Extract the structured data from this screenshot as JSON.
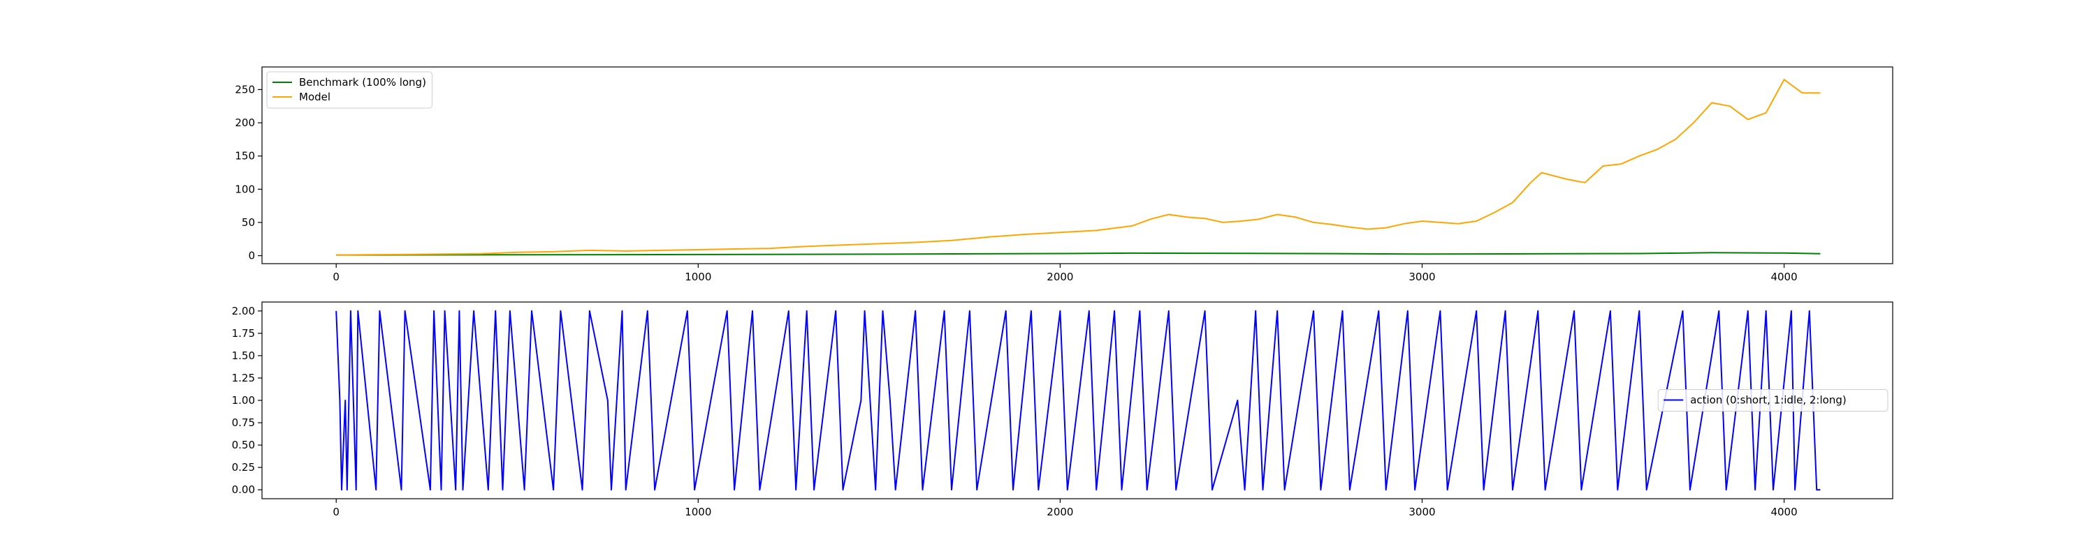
{
  "chart_data": [
    {
      "type": "line",
      "title": "",
      "xlabel": "",
      "ylabel": "",
      "xlim": [
        -205,
        4300
      ],
      "ylim": [
        -12,
        284
      ],
      "xticks": [
        0,
        1000,
        2000,
        3000,
        4000
      ],
      "yticks": [
        0,
        50,
        100,
        150,
        200,
        250
      ],
      "xtick_labels": [
        "0",
        "1000",
        "2000",
        "3000",
        "4000"
      ],
      "ytick_labels": [
        "0",
        "50",
        "100",
        "150",
        "200",
        "250"
      ],
      "grid": false,
      "legend_position": "upper-left",
      "series": [
        {
          "name": "Benchmark (100% long)",
          "color": "#008000",
          "x": [
            0,
            500,
            1000,
            1500,
            2000,
            2200,
            2500,
            2800,
            3000,
            3300,
            3600,
            3800,
            4000,
            4100
          ],
          "y": [
            1,
            1.3,
            1.8,
            2.3,
            3.2,
            3.8,
            3.5,
            3.0,
            2.5,
            2.8,
            3.2,
            4.5,
            4.0,
            3.0
          ]
        },
        {
          "name": "Model",
          "color": "#ffa500",
          "x": [
            0,
            100,
            200,
            300,
            400,
            500,
            600,
            700,
            800,
            900,
            1000,
            1100,
            1200,
            1300,
            1400,
            1500,
            1600,
            1700,
            1800,
            1900,
            2000,
            2100,
            2200,
            2250,
            2300,
            2350,
            2400,
            2450,
            2500,
            2550,
            2600,
            2650,
            2700,
            2750,
            2800,
            2850,
            2900,
            2950,
            3000,
            3050,
            3100,
            3150,
            3200,
            3250,
            3300,
            3330,
            3400,
            3450,
            3500,
            3550,
            3600,
            3650,
            3700,
            3750,
            3800,
            3850,
            3900,
            3950,
            4000,
            4050,
            4100
          ],
          "y": [
            1,
            1.5,
            2,
            2.5,
            3,
            5,
            6,
            8,
            7,
            8,
            9,
            10,
            11,
            14,
            16,
            18,
            20,
            23,
            28,
            32,
            35,
            38,
            45,
            55,
            62,
            58,
            56,
            50,
            52,
            55,
            62,
            58,
            50,
            47,
            43,
            40,
            42,
            48,
            52,
            50,
            48,
            52,
            65,
            80,
            110,
            125,
            115,
            110,
            135,
            138,
            150,
            160,
            175,
            200,
            230,
            225,
            205,
            215,
            265,
            245,
            245
          ]
        }
      ]
    },
    {
      "type": "line",
      "title": "",
      "xlabel": "",
      "ylabel": "",
      "xlim": [
        -205,
        4300
      ],
      "ylim": [
        -0.1,
        2.1
      ],
      "xticks": [
        0,
        1000,
        2000,
        3000,
        4000
      ],
      "yticks": [
        0,
        0.25,
        0.5,
        0.75,
        1.0,
        1.25,
        1.5,
        1.75,
        2.0
      ],
      "xtick_labels": [
        "0",
        "1000",
        "2000",
        "3000",
        "4000"
      ],
      "ytick_labels": [
        "0.00",
        "0.25",
        "0.50",
        "0.75",
        "1.00",
        "1.25",
        "1.50",
        "1.75",
        "2.00"
      ],
      "grid": false,
      "legend_position": "center-right",
      "series": [
        {
          "name": "action (0:short, 1:idle, 2:long)",
          "color": "#0000ff",
          "x": [
            0,
            10,
            15,
            25,
            30,
            40,
            55,
            60,
            110,
            120,
            180,
            190,
            260,
            270,
            290,
            300,
            330,
            340,
            350,
            380,
            420,
            440,
            460,
            480,
            520,
            540,
            600,
            620,
            680,
            700,
            750,
            760,
            790,
            800,
            860,
            880,
            970,
            990,
            1080,
            1100,
            1150,
            1170,
            1250,
            1270,
            1300,
            1320,
            1380,
            1400,
            1450,
            1460,
            1490,
            1510,
            1530,
            1545,
            1600,
            1620,
            1680,
            1700,
            1750,
            1770,
            1850,
            1870,
            1920,
            1940,
            2000,
            2020,
            2080,
            2100,
            2150,
            2170,
            2220,
            2240,
            2300,
            2320,
            2400,
            2420,
            2490,
            2510,
            2540,
            2560,
            2600,
            2620,
            2700,
            2720,
            2780,
            2800,
            2880,
            2900,
            2960,
            2980,
            3050,
            3070,
            3150,
            3170,
            3230,
            3250,
            3320,
            3340,
            3420,
            3440,
            3520,
            3540,
            3600,
            3620,
            3720,
            3740,
            3820,
            3840,
            3900,
            3920,
            3950,
            3970,
            4020,
            4030,
            4070,
            4090,
            4100
          ],
          "y": [
            2,
            1,
            0,
            1,
            0,
            2,
            0,
            2,
            0,
            2,
            0,
            2,
            0,
            2,
            0,
            2,
            0,
            2,
            0,
            2,
            0,
            2,
            0,
            2,
            0,
            2,
            0,
            2,
            0,
            2,
            1,
            0,
            2,
            0,
            2,
            0,
            2,
            0,
            2,
            0,
            2,
            0,
            2,
            0,
            2,
            0,
            2,
            0,
            1,
            2,
            0,
            2,
            1,
            0,
            2,
            0,
            2,
            0,
            2,
            0,
            2,
            0,
            2,
            0,
            2,
            0,
            2,
            0,
            2,
            0,
            2,
            0,
            2,
            0,
            2,
            0,
            1,
            0,
            2,
            0,
            2,
            0,
            2,
            0,
            2,
            0,
            2,
            0,
            2,
            0,
            2,
            0,
            2,
            0,
            2,
            0,
            2,
            0,
            2,
            0,
            2,
            0,
            2,
            0,
            2,
            0,
            2,
            0,
            2,
            0,
            2,
            0,
            2,
            0,
            2,
            0,
            0
          ]
        }
      ]
    }
  ]
}
